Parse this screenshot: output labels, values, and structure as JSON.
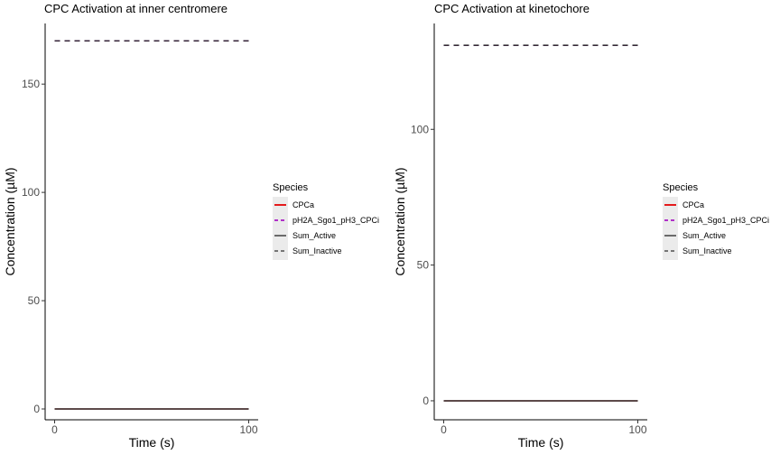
{
  "chart_data": [
    {
      "type": "line",
      "title": "CPC Activation at inner centromere",
      "xlabel": "Time (s)",
      "ylabel": "Concentration (µM)",
      "xlim": [
        0,
        100
      ],
      "ylim": [
        -5,
        178
      ],
      "x_ticks": [
        0,
        100
      ],
      "y_ticks": [
        0,
        50,
        100,
        150
      ],
      "grid": false,
      "legend": {
        "title": "Species",
        "position": "right",
        "entries": [
          {
            "label": "CPCa",
            "color": "#e41a1c",
            "style": "solid"
          },
          {
            "label": "pH2A_Sgo1_pH3_CPCi",
            "color": "#b030c8",
            "style": "dashed"
          },
          {
            "label": "Sum_Active",
            "color": "#000000",
            "style": "solid"
          },
          {
            "label": "Sum_Inactive",
            "color": "#000000",
            "style": "dashed"
          }
        ]
      },
      "series": [
        {
          "name": "CPCa",
          "x": [
            0,
            100
          ],
          "y": [
            0,
            0
          ],
          "color": "#e41a1c",
          "style": "solid"
        },
        {
          "name": "pH2A_Sgo1_pH3_CPCi",
          "x": [
            0,
            100
          ],
          "y": [
            170,
            170
          ],
          "color": "#b030c8",
          "style": "dashed"
        },
        {
          "name": "Sum_Active",
          "x": [
            0,
            100
          ],
          "y": [
            0,
            0
          ],
          "color": "#000000",
          "style": "solid"
        },
        {
          "name": "Sum_Inactive",
          "x": [
            0,
            100
          ],
          "y": [
            170,
            170
          ],
          "color": "#000000",
          "style": "dashed"
        }
      ]
    },
    {
      "type": "line",
      "title": "CPC Activation at kinetochore",
      "xlabel": "Time (s)",
      "ylabel": "Concentration (µM)",
      "xlim": [
        0,
        100
      ],
      "ylim": [
        -7,
        139
      ],
      "x_ticks": [
        0,
        100
      ],
      "y_ticks": [
        0,
        50,
        100
      ],
      "grid": false,
      "legend": {
        "title": "Species",
        "position": "right",
        "entries": [
          {
            "label": "CPCa",
            "color": "#e41a1c",
            "style": "solid"
          },
          {
            "label": "pH2A_Sgo1_pH3_CPCi",
            "color": "#b030c8",
            "style": "dashed"
          },
          {
            "label": "Sum_Active",
            "color": "#000000",
            "style": "solid"
          },
          {
            "label": "Sum_Inactive",
            "color": "#000000",
            "style": "dashed"
          }
        ]
      },
      "series": [
        {
          "name": "CPCa",
          "x": [
            0,
            100
          ],
          "y": [
            0,
            0
          ],
          "color": "#e41a1c",
          "style": "solid"
        },
        {
          "name": "pH2A_Sgo1_pH3_CPCi",
          "x": [
            0,
            100
          ],
          "y": [
            131,
            131
          ],
          "color": "#b030c8",
          "style": "dashed"
        },
        {
          "name": "Sum_Active",
          "x": [
            0,
            100
          ],
          "y": [
            0,
            0
          ],
          "color": "#000000",
          "style": "solid"
        },
        {
          "name": "Sum_Inactive",
          "x": [
            0,
            100
          ],
          "y": [
            131,
            131
          ],
          "color": "#000000",
          "style": "dashed"
        }
      ]
    }
  ]
}
